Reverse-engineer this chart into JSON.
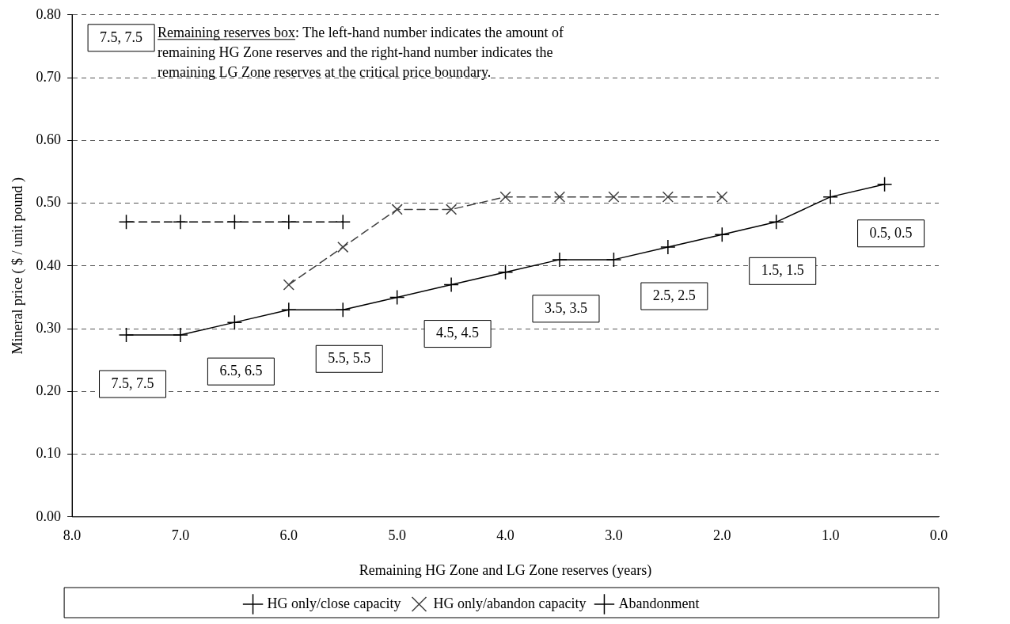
{
  "chart_data": {
    "type": "line",
    "xlabel": "Remaining HG Zone and LG Zone reserves (years)",
    "ylabel": "Mineral price ( $ / unit pound )",
    "xlim": [
      8,
      0
    ],
    "xticks": [
      {
        "value": 8,
        "label": "8.0"
      },
      {
        "value": 7,
        "label": "7.0"
      },
      {
        "value": 6,
        "label": "6.0"
      },
      {
        "value": 5,
        "label": "5.0"
      },
      {
        "value": 4,
        "label": "4.0"
      },
      {
        "value": 3,
        "label": "3.0"
      },
      {
        "value": 2,
        "label": "2.0"
      },
      {
        "value": 1,
        "label": "1.0"
      },
      {
        "value": 0,
        "label": "0.0"
      }
    ],
    "ylim": [
      0,
      0.8
    ],
    "yticks": [
      {
        "value": 0,
        "label": "0.00"
      },
      {
        "value": 0.1,
        "label": "0.10"
      },
      {
        "value": 0.2,
        "label": "0.20"
      },
      {
        "value": 0.3,
        "label": "0.30"
      },
      {
        "value": 0.4,
        "label": "0.40"
      },
      {
        "value": 0.5,
        "label": "0.50"
      },
      {
        "value": 0.6,
        "label": "0.60"
      },
      {
        "value": 0.7,
        "label": "0.70"
      },
      {
        "value": 0.8,
        "label": "0.80"
      }
    ],
    "grid": "y",
    "legend": "bottom",
    "series": [
      {
        "name": "HG only/close capacity",
        "color": "#000000",
        "line_style": "dashed",
        "marker": "cross",
        "x": [
          7.5,
          7,
          6.5,
          6,
          5.5
        ],
        "values": [
          0.47,
          0.47,
          0.47,
          0.47,
          0.47
        ]
      },
      {
        "name": "HG only/abandon capacity",
        "color": "#404040",
        "line_style": "dashed",
        "marker": "x",
        "x": [
          6,
          5.5,
          5,
          4.5,
          4,
          3.5,
          3,
          2.5,
          2
        ],
        "values": [
          0.37,
          0.43,
          0.49,
          0.49,
          0.51,
          0.51,
          0.51,
          0.51,
          0.51
        ]
      },
      {
        "name": "Abandonment",
        "color": "#000000",
        "line_style": "solid",
        "marker": "cross",
        "x": [
          7.5,
          7,
          6.5,
          6,
          5.5,
          5,
          4.5,
          4,
          3.5,
          3,
          2.5,
          2,
          1.5,
          1,
          0.5
        ],
        "values": [
          0.29,
          0.29,
          0.31,
          0.33,
          0.33,
          0.35,
          0.37,
          0.39,
          0.41,
          0.41,
          0.43,
          0.45,
          0.47,
          0.51,
          0.53
        ]
      }
    ],
    "annotations": [
      "7.5, 7.5",
      "Remaining reserves box: The left-hand number indicates the amount of remaining HG Zone reserves and the right-hand number indicates the remaining LG Zone reserves at the critical price boundary.",
      {
        "text": "7.5, 7.5",
        "x": 7.5,
        "y": 0.29
      },
      {
        "text": "6.5, 6.5",
        "x": 6.5,
        "y": 0.31
      },
      {
        "text": "5.5, 5.5",
        "x": 5.5,
        "y": 0.33
      },
      {
        "text": "4.5, 4.5",
        "x": 4.5,
        "y": 0.37
      },
      {
        "text": "3.5, 3.5",
        "x": 3.5,
        "y": 0.41
      },
      {
        "text": "2.5, 2.5",
        "x": 2.5,
        "y": 0.43
      },
      {
        "text": "1.5, 1.5",
        "x": 1.5,
        "y": 0.47
      },
      {
        "text": "0.5, 0.5",
        "x": 0.5,
        "y": 0.53
      }
    ]
  }
}
